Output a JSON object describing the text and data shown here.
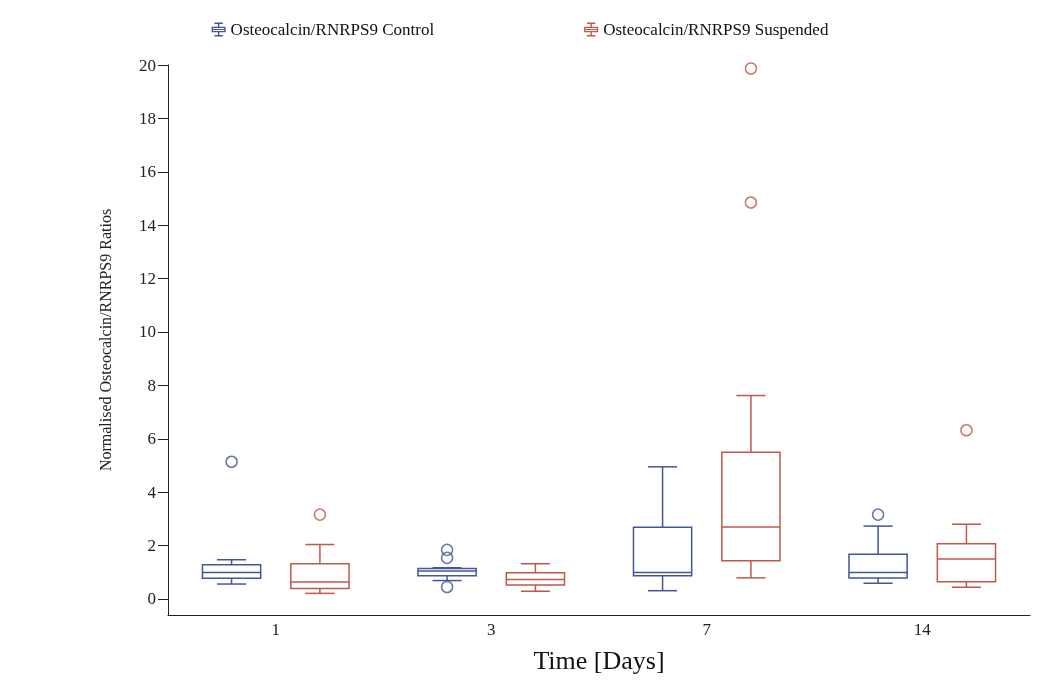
{
  "chart_data": {
    "type": "box",
    "xlabel": "Time [Days]",
    "ylabel": "Normalised Osteocalcin/RNRPS9 Ratios",
    "categories": [
      "1",
      "3",
      "7",
      "14"
    ],
    "ylim": [
      -0.6,
      20
    ],
    "yticks": [
      0,
      2,
      4,
      6,
      8,
      10,
      12,
      14,
      16,
      18,
      20
    ],
    "grid": false,
    "legend": "top",
    "marker": "circle",
    "series": [
      {
        "name": "Osteocalcin/RNRPS9 Control",
        "color": "#45559a",
        "boxes": [
          {
            "low": 0.56,
            "q1": 0.78,
            "median": 0.99,
            "q3": 1.28,
            "high": 1.47,
            "outliers": [
              5.14
            ]
          },
          {
            "low": 0.69,
            "q1": 0.87,
            "median": 1.05,
            "q3": 1.14,
            "high": 1.17,
            "outliers": [
              1.84,
              1.54,
              0.45
            ]
          },
          {
            "low": 0.31,
            "q1": 0.87,
            "median": 0.99,
            "q3": 2.69,
            "high": 4.95
          },
          {
            "low": 0.59,
            "q1": 0.79,
            "median": 0.99,
            "q3": 1.68,
            "high": 2.73,
            "outliers": [
              3.16
            ]
          }
        ]
      },
      {
        "name": "Osteocalcin/RNRPS9 Suspended",
        "color": "#c0584a",
        "boxes": [
          {
            "low": 0.21,
            "q1": 0.39,
            "median": 0.64,
            "q3": 1.32,
            "high": 2.04,
            "outliers": [
              3.16
            ]
          },
          {
            "low": 0.29,
            "q1": 0.52,
            "median": 0.73,
            "q3": 0.98,
            "high": 1.32
          },
          {
            "low": 0.79,
            "q1": 1.43,
            "median": 2.7,
            "q3": 5.5,
            "high": 7.62,
            "outliers": [
              19.87,
              14.85
            ]
          },
          {
            "low": 0.44,
            "q1": 0.65,
            "median": 1.5,
            "q3": 2.07,
            "high": 2.8,
            "outliers": [
              6.32
            ]
          }
        ]
      }
    ]
  }
}
